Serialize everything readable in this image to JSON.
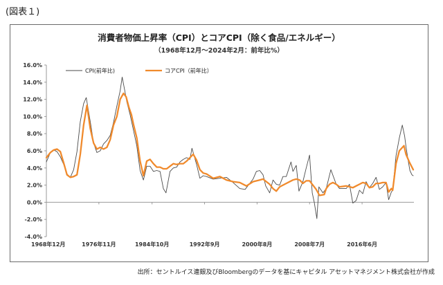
{
  "figure_label": "(図表１)",
  "source_note": "出所：セントルイス連銀及びBloombergのデータを基にキャピタル アセットマネジメント株式会社が作成",
  "colors": {
    "cpi": "#4a4a4a",
    "core": "#f08a2c",
    "axis": "#999999",
    "frame": "#6a6a6a"
  },
  "chart_data": {
    "type": "line",
    "title": "消費者物価上昇率（CPI）とコアCPI（除く食品/エネルギー）",
    "subtitle": "（1968年12月～2024年2月：前年比%）",
    "xlabel": "",
    "ylabel": "",
    "ylim": [
      -4,
      16
    ],
    "xlim": [
      1968.9,
      2024.2
    ],
    "y_ticks": [
      -4,
      -2,
      0,
      2,
      4,
      6,
      8,
      10,
      12,
      14,
      16
    ],
    "y_tick_labels": [
      "-4.0%",
      "-2.0%",
      "0.0%",
      "2.0%",
      "4.0%",
      "6.0%",
      "8.0%",
      "10.0%",
      "12.0%",
      "14.0%",
      "16.0%"
    ],
    "x_ticks": [
      1968.9,
      1976.8,
      1984.8,
      1992.7,
      2000.6,
      2008.5,
      2016.4
    ],
    "x_tick_labels": [
      "1968年12月",
      "1976年11月",
      "1984年10月",
      "1992年9月",
      "2000年8月",
      "2008年7月",
      "2016年6月"
    ],
    "grid": false,
    "legend_position": "top-left",
    "series": [
      {
        "name": "CPI(前年比)",
        "x": [
          1968.9,
          1969.5,
          1970.0,
          1970.5,
          1971.0,
          1971.5,
          1972.0,
          1972.5,
          1973.0,
          1973.5,
          1974.0,
          1974.5,
          1974.9,
          1975.5,
          1976.0,
          1976.5,
          1977.0,
          1977.5,
          1978.0,
          1978.5,
          1979.0,
          1979.5,
          1980.0,
          1980.3,
          1980.7,
          1981.0,
          1981.5,
          1982.0,
          1982.5,
          1983.0,
          1983.5,
          1984.0,
          1984.5,
          1985.0,
          1985.5,
          1986.0,
          1986.5,
          1986.9,
          1987.5,
          1988.0,
          1988.5,
          1989.0,
          1989.5,
          1990.0,
          1990.5,
          1990.8,
          1991.5,
          1992.0,
          1992.5,
          1993.0,
          1994.0,
          1995.0,
          1996.0,
          1997.0,
          1998.0,
          1998.8,
          1999.5,
          2000.0,
          2000.5,
          2001.0,
          2001.5,
          2001.9,
          2002.5,
          2003.0,
          2003.5,
          2004.0,
          2004.5,
          2005.0,
          2005.7,
          2006.0,
          2006.5,
          2006.9,
          2007.5,
          2008.0,
          2008.5,
          2008.9,
          2009.2,
          2009.6,
          2009.9,
          2010.5,
          2011.0,
          2011.7,
          2012.5,
          2013.0,
          2013.5,
          2014.0,
          2014.5,
          2015.0,
          2015.5,
          2016.0,
          2016.5,
          2017.0,
          2017.5,
          2018.0,
          2018.5,
          2019.0,
          2019.5,
          2020.0,
          2020.4,
          2020.8,
          2021.0,
          2021.5,
          2022.0,
          2022.45,
          2022.8,
          2023.0,
          2023.3,
          2023.6,
          2023.9,
          2024.1
        ],
        "values": [
          4.7,
          5.8,
          6.1,
          5.9,
          5.3,
          4.4,
          3.3,
          2.9,
          3.8,
          5.9,
          9.4,
          11.5,
          12.2,
          9.4,
          6.9,
          5.8,
          6.0,
          6.8,
          7.2,
          7.8,
          9.3,
          11.2,
          13.0,
          14.6,
          13.0,
          11.7,
          10.2,
          8.4,
          6.6,
          3.7,
          2.6,
          4.2,
          4.2,
          3.6,
          3.7,
          3.6,
          1.6,
          1.1,
          3.6,
          4.0,
          4.1,
          4.7,
          5.0,
          5.2,
          5.0,
          6.3,
          4.4,
          2.8,
          3.1,
          3.0,
          2.7,
          2.8,
          2.9,
          2.3,
          1.6,
          1.5,
          2.2,
          2.7,
          3.6,
          3.7,
          3.2,
          1.9,
          1.1,
          2.6,
          2.1,
          2.0,
          3.0,
          3.0,
          4.7,
          3.6,
          4.3,
          1.3,
          2.4,
          4.0,
          5.5,
          1.1,
          0.0,
          -1.9,
          1.8,
          1.1,
          1.6,
          3.8,
          2.1,
          1.6,
          1.6,
          1.6,
          2.1,
          -0.1,
          0.2,
          1.4,
          1.0,
          2.4,
          1.7,
          2.2,
          2.9,
          1.5,
          1.8,
          2.3,
          0.3,
          1.2,
          1.4,
          5.4,
          7.5,
          9.0,
          7.7,
          6.5,
          5.0,
          3.7,
          3.2,
          3.1
        ]
      },
      {
        "name": "コアCPI（前年比）",
        "x": [
          1968.9,
          1969.5,
          1970.0,
          1970.5,
          1971.0,
          1971.5,
          1972.0,
          1972.5,
          1973.0,
          1973.5,
          1974.0,
          1974.5,
          1975.0,
          1975.5,
          1976.0,
          1976.5,
          1977.0,
          1977.5,
          1978.0,
          1978.5,
          1979.0,
          1979.5,
          1980.0,
          1980.5,
          1980.9,
          1981.3,
          1981.7,
          1982.0,
          1982.5,
          1983.0,
          1983.5,
          1984.0,
          1984.5,
          1985.0,
          1985.5,
          1986.0,
          1986.5,
          1987.0,
          1987.5,
          1988.0,
          1988.5,
          1989.0,
          1989.5,
          1990.0,
          1990.5,
          1991.0,
          1991.5,
          1992.0,
          1992.5,
          1993.0,
          1994.0,
          1995.0,
          1996.0,
          1997.0,
          1998.0,
          1999.0,
          2000.0,
          2001.0,
          2001.5,
          2002.0,
          2002.5,
          2003.0,
          2003.5,
          2004.0,
          2005.0,
          2006.0,
          2006.5,
          2007.0,
          2007.5,
          2008.0,
          2008.5,
          2009.0,
          2009.5,
          2010.0,
          2010.7,
          2011.0,
          2011.5,
          2012.0,
          2012.5,
          2013.0,
          2014.0,
          2015.0,
          2015.5,
          2016.0,
          2016.5,
          2017.0,
          2017.5,
          2018.0,
          2018.5,
          2019.0,
          2019.5,
          2020.0,
          2020.4,
          2020.8,
          2021.0,
          2021.5,
          2022.0,
          2022.7,
          2023.0,
          2023.5,
          2024.1
        ],
        "values": [
          5.2,
          5.8,
          6.1,
          6.2,
          5.9,
          4.6,
          3.2,
          2.9,
          3.0,
          3.2,
          5.6,
          9.0,
          11.3,
          8.6,
          6.9,
          6.2,
          6.4,
          6.2,
          6.4,
          7.3,
          9.0,
          10.0,
          12.0,
          12.7,
          12.3,
          11.1,
          10.2,
          9.1,
          7.5,
          4.8,
          3.1,
          4.8,
          5.0,
          4.5,
          4.1,
          4.1,
          3.9,
          3.9,
          4.2,
          4.5,
          4.4,
          4.5,
          4.5,
          4.8,
          5.2,
          5.6,
          4.9,
          3.8,
          3.4,
          3.3,
          2.8,
          3.0,
          2.6,
          2.4,
          2.3,
          1.9,
          2.4,
          2.6,
          2.7,
          2.4,
          2.1,
          1.6,
          1.3,
          1.8,
          2.2,
          2.6,
          2.7,
          2.6,
          2.2,
          2.5,
          2.5,
          2.0,
          1.5,
          0.8,
          0.9,
          1.6,
          2.1,
          2.3,
          2.1,
          1.8,
          1.9,
          1.7,
          1.9,
          2.1,
          2.3,
          2.2,
          1.7,
          1.8,
          2.2,
          2.2,
          2.3,
          2.3,
          1.2,
          1.6,
          1.4,
          4.5,
          6.0,
          6.6,
          5.6,
          4.7,
          3.8
        ]
      }
    ]
  }
}
